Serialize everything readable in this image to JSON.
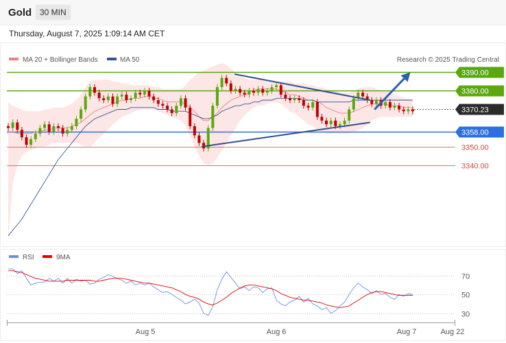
{
  "header": {
    "symbol": "Gold",
    "interval": "30 MIN"
  },
  "datetime": "Thursday, August 7, 2025 1:09:14 AM CET",
  "legend": {
    "ma20": {
      "label": "MA 20 + Bollinger Bands",
      "color": "#f08080"
    },
    "ma50": {
      "label": "MA 50",
      "color": "#2f5597"
    },
    "credit": "Research © 2025 Trading Central"
  },
  "rsi_legend": {
    "rsi": {
      "label": "RSI",
      "color": "#6a8ee8"
    },
    "ma9": {
      "label": "9MA",
      "color": "#e00000"
    }
  },
  "colors": {
    "resistance": "#5aa80e",
    "support": "#2e6fe0",
    "level_red": "#e04040",
    "current": "#2b2b2b",
    "up_candle": "#5aa80e",
    "down_candle": "#c00000",
    "trend": "#2f4f8f",
    "arrow": "#2e5fa8"
  },
  "chart_data": [
    {
      "type": "candlestick",
      "x_ticks": [
        "Aug 5",
        "Aug 6",
        "Aug 7",
        "Aug 22"
      ],
      "ylim": [
        3296,
        3406
      ],
      "levels": [
        {
          "value": 3390.0,
          "label": "3390.00",
          "kind": "resistance"
        },
        {
          "value": 3380.0,
          "label": "3380.00",
          "kind": "resistance"
        },
        {
          "value": 3370.23,
          "label": "3370.23",
          "kind": "current"
        },
        {
          "value": 3358.0,
          "label": "3358.00",
          "kind": "support"
        },
        {
          "value": 3350.0,
          "label": "3350.00",
          "kind": "red"
        },
        {
          "value": 3340.0,
          "label": "3340.00",
          "kind": "red"
        }
      ],
      "trendlines": [
        {
          "from": [
            0.508,
            3389
          ],
          "to": [
            0.81,
            3375
          ]
        },
        {
          "from": [
            0.434,
            3350
          ],
          "to": [
            0.81,
            3363
          ]
        }
      ],
      "projection": {
        "from": [
          0.82,
          3370
        ],
        "to": [
          0.9,
          3390
        ]
      },
      "closes": [
        3360,
        3363,
        3359,
        3355,
        3351,
        3354,
        3357,
        3360,
        3362,
        3358,
        3361,
        3360,
        3357,
        3359,
        3361,
        3365,
        3370,
        3377,
        3382,
        3379,
        3376,
        3375,
        3377,
        3373,
        3377,
        3378,
        3375,
        3376,
        3379,
        3378,
        3380,
        3377,
        3375,
        3373,
        3372,
        3370,
        3368,
        3372,
        3376,
        3371,
        3361,
        3356,
        3352,
        3349,
        3360,
        3372,
        3382,
        3387,
        3384,
        3380,
        3381,
        3379,
        3378,
        3380,
        3379,
        3381,
        3379,
        3380,
        3382,
        3383,
        3378,
        3376,
        3375,
        3376,
        3375,
        3372,
        3371,
        3374,
        3366,
        3364,
        3362,
        3364,
        3361,
        3362,
        3364,
        3370,
        3376,
        3379,
        3377,
        3375,
        3373,
        3375,
        3372,
        3374,
        3371,
        3372,
        3370,
        3369,
        3370,
        3369
      ],
      "ma20": [
        3358,
        3358,
        3357,
        3357,
        3357,
        3357,
        3358,
        3358,
        3359,
        3359,
        3360,
        3360,
        3360,
        3360,
        3361,
        3362,
        3363,
        3365,
        3367,
        3369,
        3370,
        3371,
        3372,
        3373,
        3374,
        3375,
        3375,
        3376,
        3376,
        3376,
        3377,
        3377,
        3376,
        3376,
        3375,
        3374,
        3374,
        3374,
        3374,
        3373,
        3371,
        3369,
        3366,
        3364,
        3364,
        3366,
        3368,
        3371,
        3373,
        3375,
        3376,
        3377,
        3378,
        3379,
        3380,
        3381,
        3381,
        3381,
        3381,
        3381,
        3380,
        3379,
        3378,
        3378,
        3377,
        3376,
        3375,
        3375,
        3374,
        3373,
        3371,
        3370,
        3369,
        3368,
        3368,
        3368,
        3369,
        3370,
        3371,
        3372,
        3373,
        3373,
        3373,
        3373,
        3372,
        3372,
        3372,
        3371,
        3371,
        3371
      ],
      "bb_upper": [
        3374,
        3372,
        3371,
        3370,
        3369,
        3369,
        3369,
        3369,
        3370,
        3370,
        3371,
        3371,
        3371,
        3372,
        3373,
        3375,
        3378,
        3382,
        3385,
        3386,
        3386,
        3386,
        3386,
        3385,
        3385,
        3384,
        3384,
        3383,
        3383,
        3383,
        3383,
        3383,
        3382,
        3382,
        3381,
        3381,
        3381,
        3381,
        3381,
        3383,
        3386,
        3388,
        3390,
        3391,
        3392,
        3393,
        3394,
        3395,
        3394,
        3392,
        3390,
        3388,
        3387,
        3386,
        3386,
        3386,
        3386,
        3385,
        3385,
        3385,
        3385,
        3385,
        3385,
        3384,
        3384,
        3384,
        3383,
        3383,
        3382,
        3382,
        3381,
        3380,
        3380,
        3379,
        3379,
        3379,
        3380,
        3381,
        3382,
        3382,
        3382,
        3381,
        3380,
        3380,
        3379,
        3378,
        3377,
        3376,
        3376,
        3375
      ],
      "bb_lower": [
        3300,
        3330,
        3340,
        3345,
        3347,
        3348,
        3349,
        3350,
        3350,
        3351,
        3352,
        3352,
        3352,
        3352,
        3352,
        3352,
        3351,
        3350,
        3350,
        3352,
        3355,
        3357,
        3359,
        3362,
        3364,
        3366,
        3367,
        3368,
        3369,
        3370,
        3370,
        3370,
        3370,
        3369,
        3368,
        3367,
        3366,
        3365,
        3364,
        3361,
        3356,
        3350,
        3345,
        3341,
        3340,
        3341,
        3344,
        3348,
        3352,
        3356,
        3360,
        3364,
        3367,
        3369,
        3371,
        3372,
        3372,
        3373,
        3374,
        3374,
        3373,
        3371,
        3369,
        3368,
        3366,
        3364,
        3362,
        3361,
        3359,
        3358,
        3357,
        3357,
        3357,
        3357,
        3357,
        3357,
        3358,
        3359,
        3360,
        3362,
        3364,
        3365,
        3366,
        3366,
        3366,
        3366,
        3366,
        3366,
        3366,
        3366
      ],
      "ma50": [
        3302,
        3305,
        3308,
        3311,
        3315,
        3319,
        3323,
        3327,
        3331,
        3335,
        3339,
        3343,
        3346,
        3349,
        3352,
        3355,
        3358,
        3361,
        3363,
        3365,
        3366,
        3367,
        3368,
        3369,
        3370,
        3370,
        3370,
        3371,
        3371,
        3371,
        3371,
        3371,
        3371,
        3370,
        3370,
        3370,
        3369,
        3369,
        3369,
        3369,
        3368,
        3367,
        3366,
        3365,
        3365,
        3366,
        3367,
        3369,
        3370,
        3371,
        3372,
        3372,
        3373,
        3373,
        3374,
        3374,
        3375,
        3375,
        3375,
        3376,
        3376,
        3376,
        3376,
        3376,
        3376,
        3375,
        3375,
        3375,
        3374,
        3374,
        3374,
        3374,
        3374,
        3374,
        3374,
        3374,
        3375,
        3375,
        3375,
        3375,
        3375,
        3375,
        3375,
        3375,
        3375,
        3375,
        3375,
        3375,
        3375,
        3375
      ]
    },
    {
      "type": "line",
      "ylim": [
        22,
        82
      ],
      "gridlines": [
        70,
        50,
        30
      ],
      "tick_labels": [
        "70",
        "50",
        "30"
      ],
      "series": [
        {
          "name": "RSI",
          "values": [
            77,
            77,
            72,
            75,
            67,
            60,
            62,
            63,
            63,
            67,
            64,
            67,
            62,
            67,
            62,
            66,
            64,
            65,
            61,
            62,
            66,
            68,
            71,
            69,
            67,
            65,
            62,
            64,
            60,
            62,
            60,
            62,
            58,
            55,
            52,
            53,
            50,
            47,
            44,
            40,
            42,
            45,
            41,
            30,
            28,
            37,
            55,
            66,
            74,
            68,
            62,
            56,
            58,
            54,
            58,
            57,
            52,
            56,
            57,
            44,
            40,
            38,
            42,
            44,
            48,
            42,
            46,
            40,
            38,
            34,
            36,
            30,
            33,
            38,
            42,
            50,
            57,
            62,
            58,
            55,
            51,
            54,
            50,
            51,
            47,
            45,
            50,
            48,
            51,
            50
          ]
        },
        {
          "name": "9MA",
          "values": [
            75,
            75,
            74,
            73,
            71,
            69,
            67,
            66,
            65,
            64,
            64,
            64,
            64,
            65,
            65,
            65,
            65,
            65,
            65,
            64,
            64,
            65,
            66,
            67,
            67,
            67,
            66,
            65,
            64,
            63,
            62,
            62,
            61,
            60,
            59,
            58,
            57,
            55,
            53,
            50,
            48,
            47,
            45,
            42,
            40,
            39,
            41,
            44,
            47,
            51,
            54,
            57,
            59,
            60,
            60,
            59,
            58,
            57,
            56,
            54,
            51,
            49,
            47,
            46,
            45,
            44,
            44,
            43,
            42,
            41,
            39,
            38,
            37,
            36,
            37,
            38,
            41,
            44,
            47,
            50,
            52,
            53,
            53,
            52,
            51,
            50,
            49,
            49,
            49,
            49
          ]
        }
      ]
    }
  ]
}
